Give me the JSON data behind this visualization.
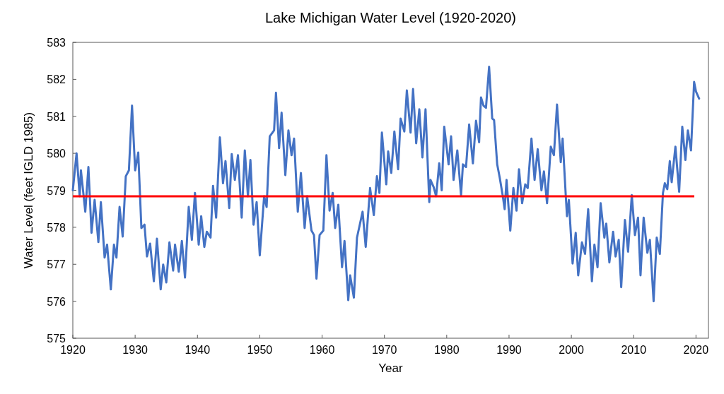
{
  "chart_data": {
    "type": "line",
    "title": "Lake Michigan Water Level (1920-2020)",
    "xlabel": "Year",
    "ylabel": "Water Level (feet IGLD 1985)",
    "xlim": [
      1920,
      2022
    ],
    "xticks": [
      1920,
      1930,
      1940,
      1950,
      1960,
      1970,
      1980,
      1990,
      2000,
      2010,
      2020
    ],
    "ylim": [
      575,
      583
    ],
    "yticks": [
      575,
      576,
      577,
      578,
      579,
      580,
      581,
      582,
      583
    ],
    "grid": false,
    "marker": "none",
    "line_style": "solid",
    "ref_lines": [
      {
        "axis": "y",
        "value": 578.84,
        "color": "#ff0000"
      }
    ],
    "series": [
      {
        "color": "#4472c4",
        "x": [
          1920.0,
          1920.6,
          1921.1,
          1921.3,
          1922.0,
          1922.5,
          1923.0,
          1923.5,
          1924.1,
          1924.5,
          1925.1,
          1925.5,
          1926.1,
          1926.6,
          1927.0,
          1927.5,
          1928.0,
          1928.5,
          1929.0,
          1929.5,
          1930.0,
          1930.5,
          1931.0,
          1931.5,
          1931.9,
          1932.4,
          1933.0,
          1933.5,
          1934.1,
          1934.5,
          1935.0,
          1935.5,
          1936.1,
          1936.4,
          1937.0,
          1937.5,
          1938.0,
          1938.6,
          1939.1,
          1939.6,
          1940.2,
          1940.6,
          1941.1,
          1941.5,
          1942.1,
          1942.5,
          1943.0,
          1943.6,
          1944.1,
          1944.5,
          1945.1,
          1945.5,
          1946.0,
          1946.5,
          1947.1,
          1947.6,
          1948.1,
          1948.5,
          1949.0,
          1949.5,
          1950.0,
          1950.7,
          1951.1,
          1951.6,
          1952.3,
          1952.6,
          1953.1,
          1953.5,
          1954.1,
          1954.6,
          1955.1,
          1955.5,
          1956.1,
          1956.6,
          1957.2,
          1957.6,
          1958.3,
          1958.7,
          1959.1,
          1959.6,
          1960.2,
          1960.7,
          1961.2,
          1961.7,
          1962.1,
          1962.6,
          1963.2,
          1963.6,
          1964.2,
          1964.5,
          1965.1,
          1965.6,
          1966.5,
          1967.0,
          1967.7,
          1968.3,
          1968.8,
          1969.2,
          1969.6,
          1970.3,
          1970.6,
          1971.1,
          1971.6,
          1972.2,
          1972.6,
          1973.2,
          1973.6,
          1974.2,
          1974.6,
          1975.1,
          1975.6,
          1976.1,
          1976.6,
          1977.2,
          1977.4,
          1977.9,
          1978.3,
          1978.8,
          1979.2,
          1979.6,
          1980.3,
          1980.7,
          1981.1,
          1981.7,
          1982.3,
          1982.6,
          1983.1,
          1983.6,
          1984.2,
          1984.7,
          1985.2,
          1985.5,
          1985.9,
          1986.3,
          1986.8,
          1987.3,
          1987.6,
          1988.1,
          1988.5,
          1989.0,
          1989.3,
          1989.6,
          1990.2,
          1990.7,
          1991.2,
          1991.6,
          1992.1,
          1992.6,
          1993.0,
          1993.6,
          1994.1,
          1994.6,
          1995.2,
          1995.6,
          1996.1,
          1996.7,
          1997.2,
          1997.7,
          1998.3,
          1998.6,
          1999.1,
          1999.3,
          1999.6,
          2000.2,
          2000.7,
          2001.1,
          2001.7,
          2002.2,
          2002.7,
          2003.3,
          2003.7,
          2004.2,
          2004.7,
          2005.3,
          2005.6,
          2006.1,
          2006.7,
          2007.1,
          2007.6,
          2008.0,
          2008.6,
          2009.1,
          2009.7,
          2010.2,
          2010.7,
          2011.1,
          2011.6,
          2012.2,
          2012.6,
          2013.2,
          2013.7,
          2014.2,
          2014.7,
          2015.0,
          2015.4,
          2015.8,
          2016.1,
          2016.7,
          2017.3,
          2017.8,
          2018.3,
          2018.7,
          2019.2,
          2019.7,
          2020.0,
          2020.5
        ],
        "values": [
          579.0,
          580.0,
          578.84,
          579.54,
          578.42,
          579.63,
          577.85,
          578.74,
          577.6,
          578.68,
          577.18,
          577.53,
          576.32,
          577.53,
          577.18,
          578.55,
          577.75,
          579.38,
          579.54,
          581.29,
          579.54,
          580.02,
          577.98,
          578.07,
          577.21,
          577.56,
          576.54,
          577.69,
          576.32,
          576.99,
          576.51,
          577.59,
          576.83,
          577.53,
          576.8,
          577.63,
          576.64,
          578.55,
          577.66,
          578.93,
          577.53,
          578.3,
          577.47,
          577.88,
          577.72,
          579.12,
          578.26,
          580.43,
          579.19,
          579.79,
          578.52,
          579.98,
          579.28,
          579.95,
          578.26,
          580.08,
          578.84,
          579.82,
          578.07,
          578.68,
          577.24,
          578.84,
          578.55,
          580.46,
          580.62,
          581.64,
          580.14,
          581.1,
          579.41,
          580.62,
          579.95,
          580.4,
          578.42,
          579.47,
          577.98,
          578.84,
          577.91,
          577.79,
          576.61,
          577.79,
          577.91,
          579.95,
          578.45,
          578.93,
          577.98,
          578.61,
          576.92,
          577.63,
          576.03,
          576.7,
          576.1,
          577.72,
          578.42,
          577.47,
          579.06,
          578.33,
          579.38,
          578.93,
          580.56,
          579.16,
          580.05,
          579.47,
          580.59,
          579.57,
          580.94,
          580.59,
          581.7,
          580.56,
          581.74,
          580.27,
          581.19,
          579.89,
          581.19,
          578.68,
          579.28,
          579.09,
          578.84,
          579.73,
          579.0,
          580.72,
          579.7,
          580.46,
          579.28,
          580.08,
          578.87,
          579.7,
          579.63,
          580.78,
          579.73,
          580.88,
          580.3,
          581.51,
          581.29,
          581.23,
          582.34,
          580.94,
          580.9,
          579.7,
          579.35,
          578.84,
          578.49,
          579.28,
          577.91,
          579.06,
          578.45,
          579.57,
          578.65,
          579.16,
          579.06,
          580.4,
          579.28,
          580.11,
          579.0,
          579.51,
          578.65,
          580.18,
          579.95,
          581.32,
          579.76,
          580.4,
          578.87,
          578.3,
          578.74,
          577.02,
          577.85,
          576.7,
          577.59,
          577.28,
          578.49,
          576.54,
          577.53,
          576.92,
          578.65,
          577.72,
          578.1,
          577.05,
          577.88,
          577.21,
          577.66,
          576.38,
          578.2,
          577.34,
          578.87,
          577.79,
          578.26,
          576.7,
          578.26,
          577.31,
          577.66,
          576.0,
          577.72,
          577.28,
          578.93,
          579.19,
          579.03,
          579.79,
          579.22,
          580.18,
          578.96,
          580.72,
          579.82,
          580.62,
          580.08,
          581.93,
          581.67,
          581.48
        ]
      }
    ]
  }
}
